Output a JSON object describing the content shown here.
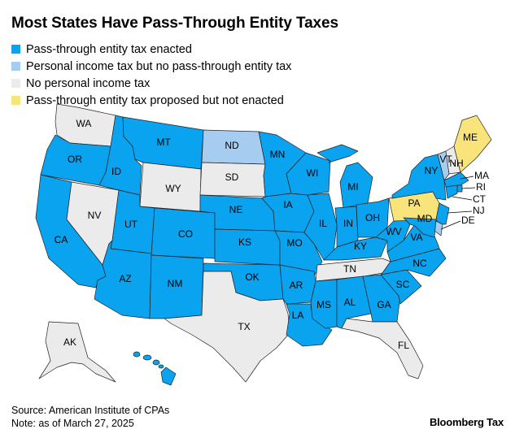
{
  "title": "Most States Have Pass-Through Entity Taxes",
  "legend": [
    {
      "label": "Pass-through entity tax enacted",
      "color": "#0aa3f0"
    },
    {
      "label": "Personal income tax but no pass-through entity tax",
      "color": "#a6cdf0"
    },
    {
      "label": "No personal income tax",
      "color": "#ebebeb"
    },
    {
      "label": "Pass-through entity tax proposed but not enacted",
      "color": "#f8e47a"
    }
  ],
  "states": {
    "WA": "WA",
    "OR": "OR",
    "CA": "CA",
    "ID": "ID",
    "NV": "NV",
    "MT": "MT",
    "WY": "WY",
    "UT": "UT",
    "AZ": "AZ",
    "CO": "CO",
    "NM": "NM",
    "ND": "ND",
    "SD": "SD",
    "NE": "NE",
    "KS": "KS",
    "OK": "OK",
    "TX": "TX",
    "MN": "MN",
    "IA": "IA",
    "MO": "MO",
    "AR": "AR",
    "LA": "LA",
    "WI": "WI",
    "IL": "IL",
    "MI": "MI",
    "IN": "IN",
    "OH": "OH",
    "KY": "KY",
    "TN": "TN",
    "MS": "MS",
    "AL": "AL",
    "GA": "GA",
    "FL": "FL",
    "SC": "SC",
    "NC": "NC",
    "VA": "VA",
    "WV": "WV",
    "PA": "PA",
    "NY": "NY",
    "VT": "VT",
    "NH": "NH",
    "ME": "ME",
    "MA": "MA",
    "RI": "RI",
    "CT": "CT",
    "NJ": "NJ",
    "DE": "DE",
    "MD": "MD",
    "AK": "AK"
  },
  "source": "Source: American Institute of CPAs",
  "note": "Note: as of March 27, 2025",
  "brand": "Bloomberg Tax"
}
